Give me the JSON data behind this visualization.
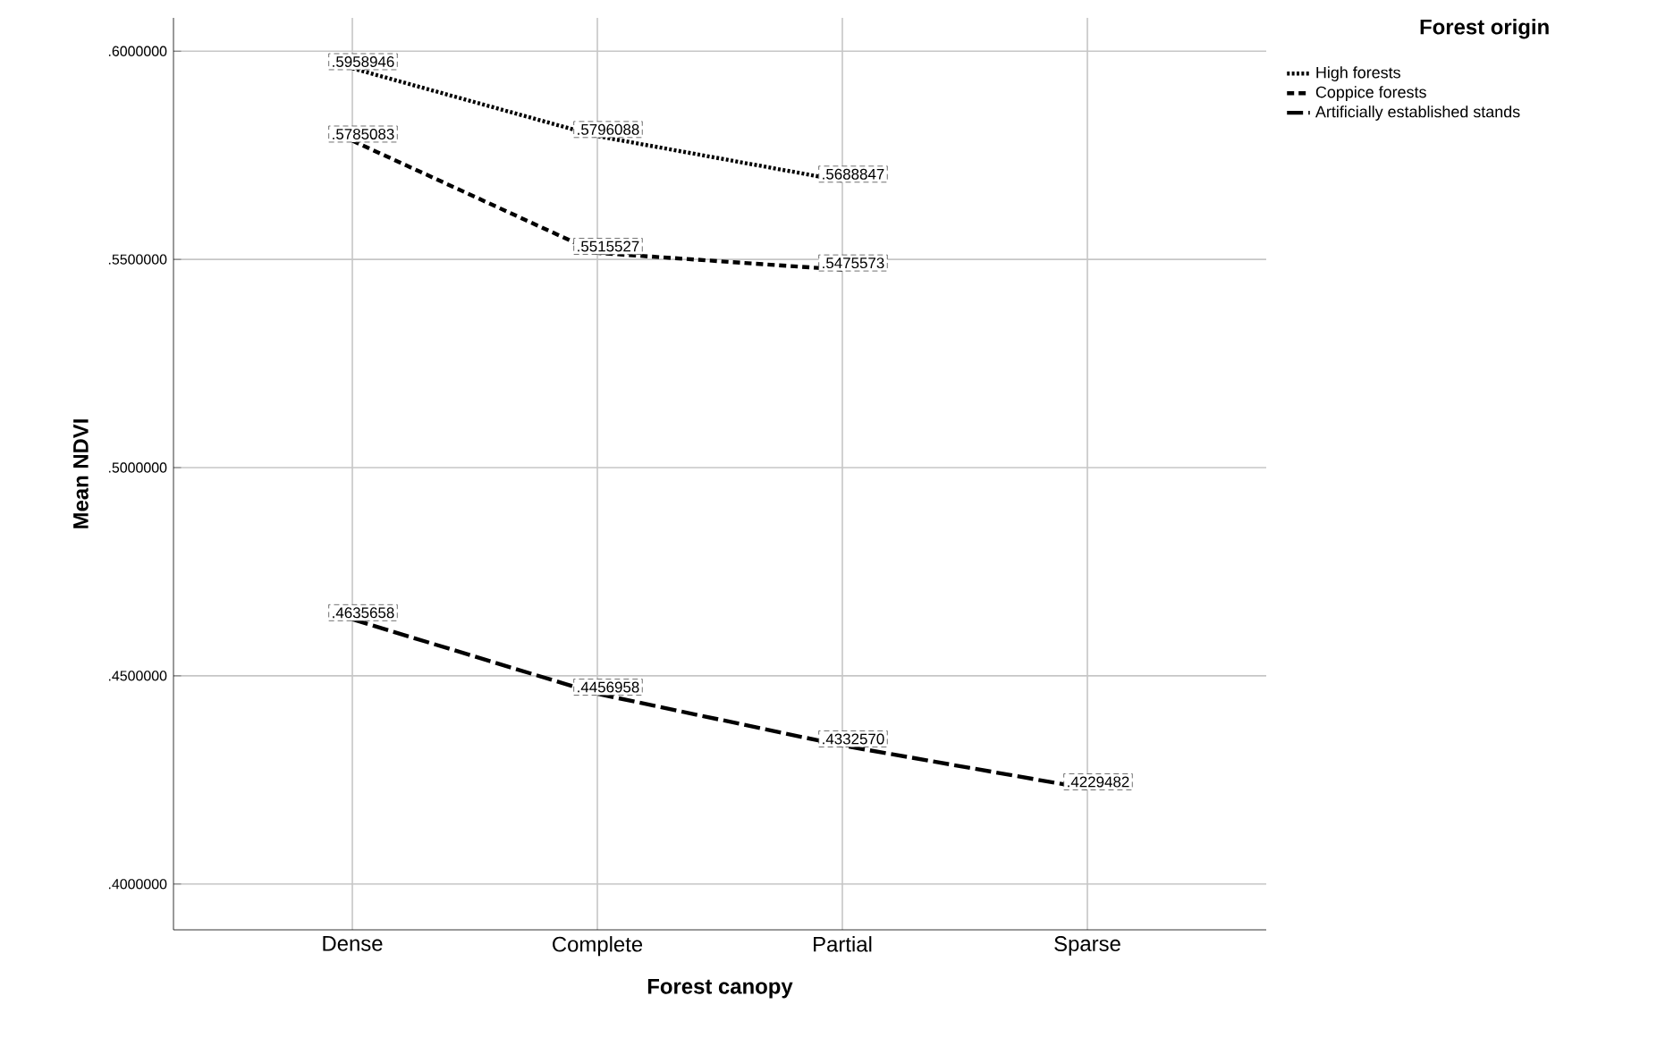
{
  "chart_data": {
    "type": "line",
    "xlabel": "Forest canopy",
    "ylabel": "Mean NDVI",
    "legend_title": "Forest origin",
    "categories": [
      "Dense",
      "Complete",
      "Partial",
      "Sparse"
    ],
    "series": [
      {
        "name": "High forests",
        "color": "#000000",
        "line_style": "dotted",
        "values": [
          0.5958946,
          0.5796088,
          0.5688847,
          null
        ],
        "value_labels": [
          ".5958946",
          ".5796088",
          ".5688847",
          null
        ]
      },
      {
        "name": "Coppice forests",
        "color": "#000000",
        "line_style": "dashed",
        "values": [
          0.5785083,
          0.5515527,
          0.5475573,
          null
        ],
        "value_labels": [
          ".5785083",
          ".5515527",
          ".5475573",
          null
        ]
      },
      {
        "name": "Artificially established stands",
        "color": "#000000",
        "line_style": "dashed",
        "values": [
          0.4635658,
          0.4456958,
          0.433257,
          0.4229482
        ],
        "value_labels": [
          ".4635658",
          ".4456958",
          ".4332570",
          ".4229482"
        ]
      }
    ],
    "ylim": [
      0.389,
      0.608
    ],
    "yticks": [
      {
        "value": 0.4,
        "label": ".4000000"
      },
      {
        "value": 0.45,
        "label": ".4500000"
      },
      {
        "value": 0.5,
        "label": ".5000000"
      },
      {
        "value": 0.55,
        "label": ".5500000"
      },
      {
        "value": 0.6,
        "label": ".6000000"
      }
    ],
    "grid": true,
    "legend": "top right",
    "marker": "none"
  }
}
